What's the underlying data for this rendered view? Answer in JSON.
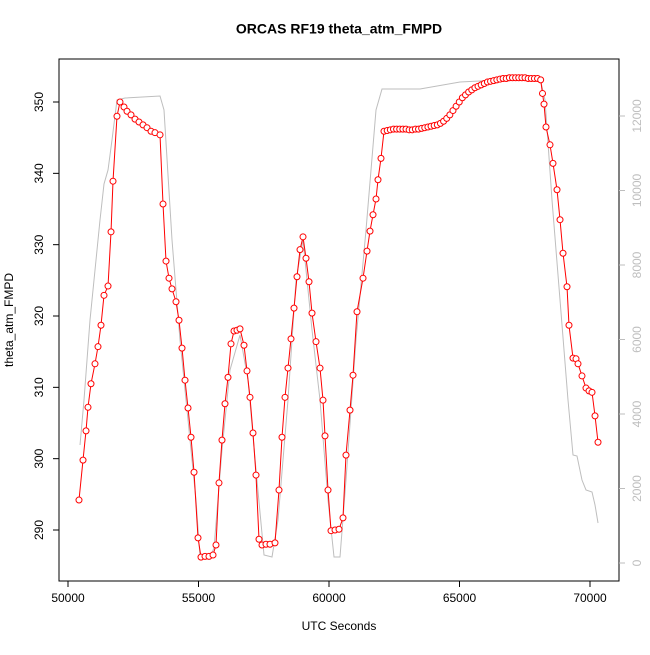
{
  "chart_data": {
    "type": "line",
    "title": "ORCAS RF19 theta_atm_FMPD",
    "x_label": "UTC Seconds",
    "y_label": "theta_atm_FMPD",
    "xlim": [
      49655,
      71111
    ],
    "xticks": [
      50000,
      55000,
      60000,
      65000,
      70000
    ],
    "ylim": [
      282.85,
      356.03
    ],
    "yticks": [
      290,
      300,
      310,
      320,
      330,
      340,
      350
    ],
    "y2lim": [
      -483,
      13530
    ],
    "y2ticks": [
      0,
      2000,
      4000,
      6000,
      8000,
      10000,
      12000
    ],
    "series": [
      {
        "color": "#bebebe",
        "axis": "y2",
        "marker": "none",
        "x": [
          50460,
          50613,
          50843,
          51073,
          51226,
          51379,
          51533,
          51686,
          51877,
          52184,
          53525,
          53678,
          53985,
          54291,
          54598,
          54904,
          55057,
          55441,
          55594,
          55900,
          56207,
          56590,
          56897,
          57203,
          57510,
          57816,
          58046,
          58429,
          58736,
          59004,
          59349,
          59655,
          59962,
          60192,
          60421,
          60651,
          61034,
          61418,
          61801,
          62031,
          63487,
          65019,
          68084,
          68276,
          68544,
          68851,
          69157,
          69349,
          69502,
          69693,
          69847,
          70077,
          70192,
          70307
        ],
        "values": [
          3168,
          4376,
          6523,
          8134,
          9208,
          10174,
          10550,
          11356,
          12430,
          12483,
          12537,
          12161,
          8671,
          5987,
          3839,
          1691,
          161,
          161,
          403,
          3034,
          5181,
          6121,
          4913,
          2497,
          215,
          161,
          1154,
          4376,
          7597,
          8671,
          6255,
          4376,
          1691,
          161,
          161,
          2228,
          5987,
          8940,
          12161,
          12725,
          12725,
          12913,
          13020,
          12430,
          9745,
          7060,
          4376,
          2899,
          2872,
          2228,
          1960,
          1906,
          1557,
          1074
        ]
      },
      {
        "color": "#ff0000",
        "axis": "y",
        "marker": "circle",
        "x": [
          50421,
          50575,
          50690,
          50766,
          50881,
          51034,
          51149,
          51264,
          51379,
          51533,
          51648,
          51724,
          51877,
          51992,
          52146,
          52261,
          52414,
          52567,
          52720,
          52874,
          53027,
          53180,
          53333,
          53525,
          53640,
          53755,
          53870,
          53985,
          54138,
          54253,
          54368,
          54483,
          54598,
          54713,
          54828,
          54981,
          55096,
          55249,
          55402,
          55556,
          55670,
          55785,
          55900,
          56015,
          56130,
          56245,
          56360,
          56475,
          56590,
          56743,
          56858,
          56973,
          57088,
          57203,
          57318,
          57433,
          57586,
          57739,
          57931,
          58084,
          58199,
          58314,
          58429,
          58544,
          58659,
          58774,
          58889,
          59004,
          59119,
          59234,
          59349,
          59502,
          59655,
          59770,
          59847,
          59962,
          60077,
          60230,
          60383,
          60536,
          60651,
          60805,
          60920,
          61073,
          61303,
          61456,
          61571,
          61686,
          61801,
          61877,
          61992,
          62107,
          62230,
          62350,
          62470,
          62590,
          62710,
          62830,
          62950,
          63070,
          63190,
          63310,
          63430,
          63550,
          63670,
          63790,
          63910,
          64030,
          64150,
          64270,
          64390,
          64510,
          64630,
          64750,
          64870,
          64990,
          65110,
          65230,
          65350,
          65470,
          65590,
          65710,
          65830,
          65950,
          66070,
          66190,
          66310,
          66430,
          66550,
          66670,
          66790,
          66910,
          67030,
          67150,
          67270,
          67390,
          67510,
          67630,
          67750,
          67870,
          67990,
          68110,
          68180,
          68238,
          68314,
          68467,
          68582,
          68736,
          68851,
          68966,
          69119,
          69195,
          69349,
          69464,
          69540,
          69693,
          69847,
          69962,
          70077,
          70192,
          70307
        ],
        "values": [
          294.2,
          299.8,
          303.9,
          307.2,
          310.5,
          313.3,
          315.7,
          318.7,
          322.9,
          324.2,
          331.8,
          338.9,
          348.0,
          350.0,
          349.3,
          348.7,
          348.2,
          347.6,
          347.2,
          346.8,
          346.4,
          345.9,
          345.7,
          345.4,
          335.7,
          327.7,
          325.3,
          323.8,
          322.0,
          319.4,
          315.5,
          311.0,
          307.1,
          303.0,
          298.1,
          288.9,
          286.2,
          286.3,
          286.3,
          286.5,
          287.9,
          296.6,
          302.6,
          307.7,
          311.4,
          316.1,
          317.9,
          318.0,
          318.2,
          315.9,
          312.3,
          308.6,
          303.6,
          297.7,
          288.7,
          287.9,
          288.0,
          288.0,
          288.2,
          295.6,
          303.0,
          308.6,
          312.7,
          316.8,
          321.1,
          325.5,
          329.3,
          331.1,
          328.1,
          324.8,
          320.4,
          316.4,
          312.7,
          308.2,
          303.2,
          295.6,
          289.9,
          290.0,
          290.1,
          291.7,
          300.5,
          306.8,
          311.7,
          320.6,
          325.3,
          329.1,
          331.9,
          334.2,
          336.4,
          339.1,
          342.1,
          345.9,
          346.0,
          346.1,
          346.2,
          346.2,
          346.2,
          346.2,
          346.2,
          346.1,
          346.1,
          346.2,
          346.2,
          346.3,
          346.4,
          346.5,
          346.6,
          346.7,
          346.8,
          347.0,
          347.3,
          347.7,
          348.2,
          348.8,
          349.4,
          350.0,
          350.6,
          351.0,
          351.4,
          351.7,
          352.0,
          352.2,
          352.4,
          352.6,
          352.8,
          352.9,
          353.0,
          353.1,
          353.2,
          353.3,
          353.3,
          353.4,
          353.4,
          353.4,
          353.4,
          353.4,
          353.4,
          353.3,
          353.3,
          353.3,
          353.3,
          353.1,
          351.2,
          349.7,
          346.5,
          344.0,
          341.4,
          337.7,
          333.5,
          328.8,
          324.1,
          318.7,
          314.1,
          314.0,
          313.3,
          311.6,
          309.9,
          309.5,
          309.3,
          306.0,
          302.3
        ]
      }
    ]
  }
}
